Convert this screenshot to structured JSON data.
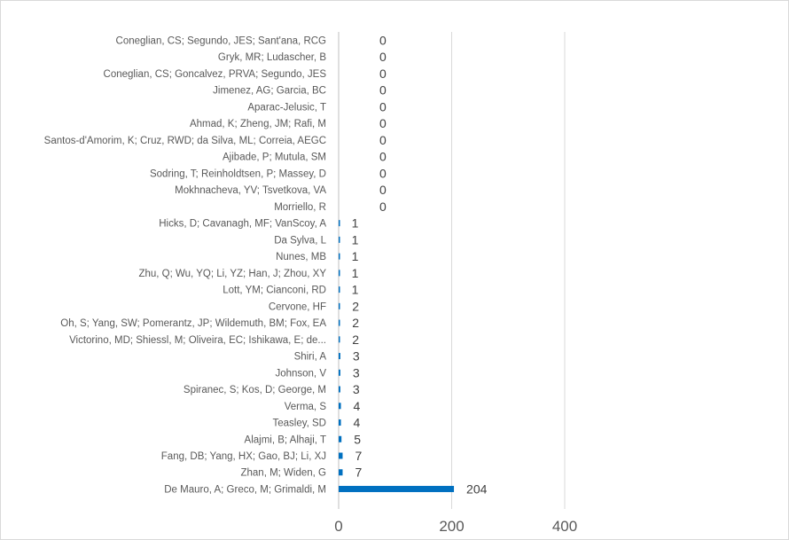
{
  "chart_data": {
    "type": "bar",
    "orientation": "horizontal",
    "categories": [
      "Coneglian, CS; Segundo, JES; Sant'ana, RCG",
      "Gryk, MR; Ludascher, B",
      "Coneglian, CS; Goncalvez, PRVA; Segundo, JES",
      "Jimenez, AG; Garcia, BC",
      "Aparac-Jelusic, T",
      "Ahmad, K; Zheng, JM; Rafi, M",
      "Santos-d'Amorim, K; Cruz, RWD; da Silva, ML; Correia, AEGC",
      "Ajibade, P; Mutula, SM",
      "Sodring, T; Reinholdtsen, P; Massey, D",
      "Mokhnacheva, YV; Tsvetkova, VA",
      "Morriello, R",
      "Hicks, D; Cavanagh, MF; VanScoy, A",
      "Da Sylva, L",
      "Nunes, MB",
      "Zhu, Q; Wu, YQ; Li, YZ; Han, J; Zhou, XY",
      "Lott, YM; Cianconi, RD",
      "Cervone, HF",
      "Oh, S; Yang, SW; Pomerantz, JP; Wildemuth, BM; Fox, EA",
      "Victorino, MD; Shiessl, M; Oliveira, EC; Ishikawa, E; de...",
      "Shiri, A",
      "Johnson, V",
      "Spiranec, S; Kos, D; George, M",
      "Verma, S",
      "Teasley, SD",
      "Alajmi, B; Alhaji, T",
      "Fang, DB; Yang, HX; Gao, BJ; Li, XJ",
      "Zhan, M; Widen, G",
      "De Mauro, A; Greco, M; Grimaldi, M"
    ],
    "values": [
      0,
      0,
      0,
      0,
      0,
      0,
      0,
      0,
      0,
      0,
      0,
      1,
      1,
      1,
      1,
      1,
      2,
      2,
      2,
      3,
      3,
      3,
      4,
      4,
      5,
      7,
      7,
      204
    ],
    "xlim": [
      0,
      400
    ],
    "xticks": [
      0,
      200,
      400
    ],
    "bar_color": "#0070C0",
    "gridlines": true,
    "legend": false
  }
}
